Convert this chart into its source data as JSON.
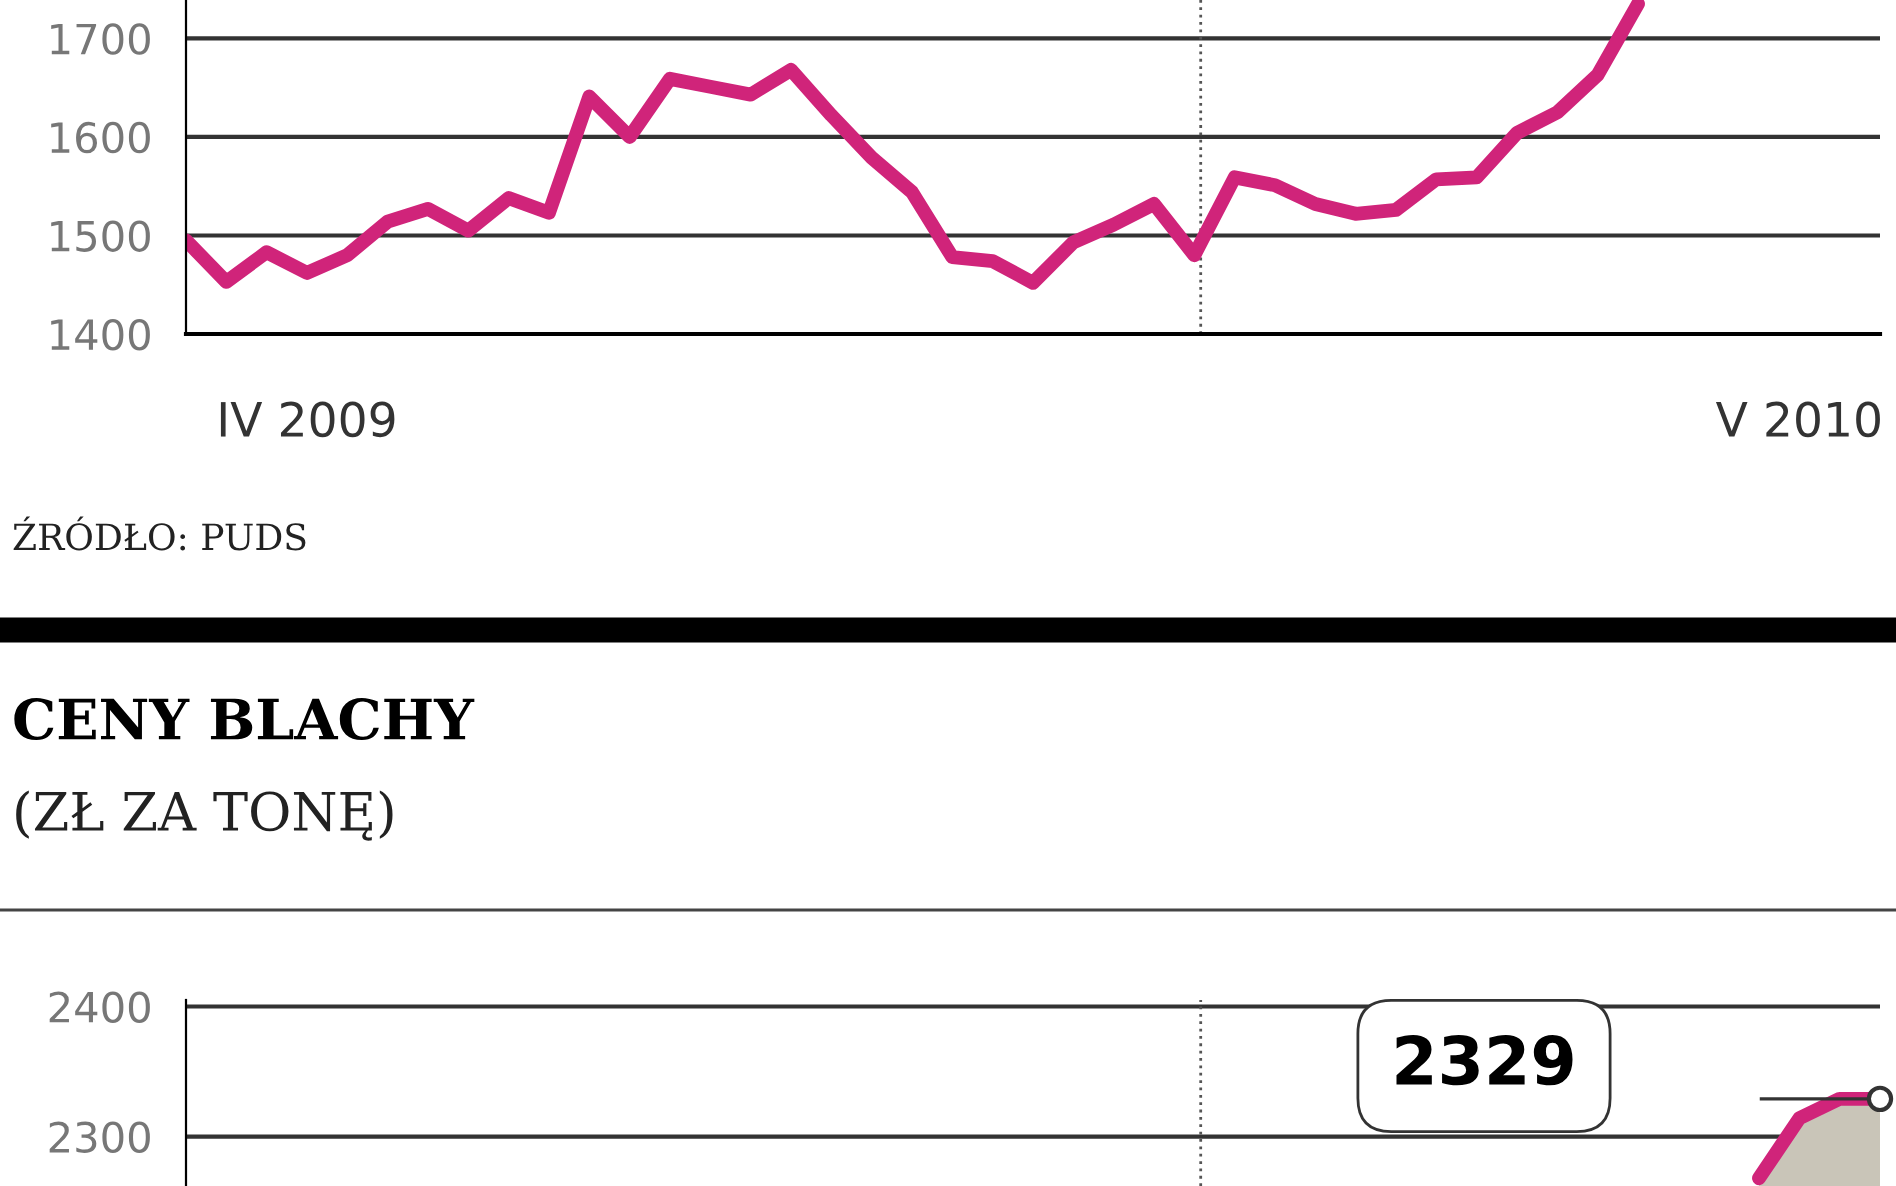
{
  "chart_data": [
    {
      "type": "line",
      "annotations": [
        "ŹRÓDŁO: PUDS"
      ],
      "categories": [
        null,
        null,
        null,
        "IV 2009",
        null,
        null,
        null,
        null,
        null,
        null,
        null,
        null,
        null,
        null,
        null,
        null,
        null,
        null,
        null,
        null,
        null,
        null,
        null,
        null,
        null,
        null,
        null,
        null,
        null,
        null,
        null,
        null,
        null,
        null,
        null,
        null,
        null,
        null,
        null,
        null,
        "V 2010",
        null,
        null
      ],
      "series": [
        {
          "color": "#d0247a",
          "values": [
            1495,
            1453,
            1483,
            1462,
            1480,
            1514,
            1527,
            1505,
            1538,
            1523,
            1641,
            1600,
            1659,
            1651,
            1643,
            1668,
            1622,
            1579,
            1544,
            1478,
            1474,
            1452,
            1493,
            1511,
            1532,
            1480,
            1559,
            1551,
            1532,
            1522,
            1526,
            1557,
            1559,
            1604,
            1625,
            1663,
            1735,
            null,
            null,
            null,
            null,
            null,
            null
          ]
        }
      ],
      "ylim": [
        1400,
        1739
      ],
      "yticks": [
        1400,
        1500,
        1600,
        1700
      ],
      "grid": "y"
    },
    {
      "type": "area",
      "title": "CENY BLACHY",
      "subtitle": "(ZŁ ZA TONĘ)",
      "annotations": [
        "2329"
      ],
      "categories": [
        null,
        null,
        null,
        null,
        null,
        null,
        null,
        null,
        null,
        null,
        null,
        null,
        null,
        null,
        null,
        null,
        null,
        null,
        null,
        null,
        null,
        null,
        null,
        null,
        null,
        null,
        null,
        null,
        null,
        null,
        null,
        null,
        null,
        null,
        null,
        null,
        null,
        null,
        null,
        null,
        null,
        null,
        null
      ],
      "series": [
        {
          "color": "#d0247a",
          "values": [
            null,
            null,
            null,
            null,
            null,
            null,
            null,
            null,
            null,
            null,
            null,
            null,
            null,
            null,
            null,
            null,
            null,
            null,
            null,
            null,
            null,
            null,
            null,
            null,
            null,
            null,
            null,
            null,
            null,
            null,
            null,
            null,
            null,
            null,
            null,
            null,
            null,
            null,
            null,
            2268,
            2314,
            2329,
            2329
          ]
        }
      ],
      "ylim": [
        2262,
        2405
      ],
      "yticks": [
        2300,
        2400
      ],
      "grid": "y",
      "tick_labels": "y"
    }
  ]
}
